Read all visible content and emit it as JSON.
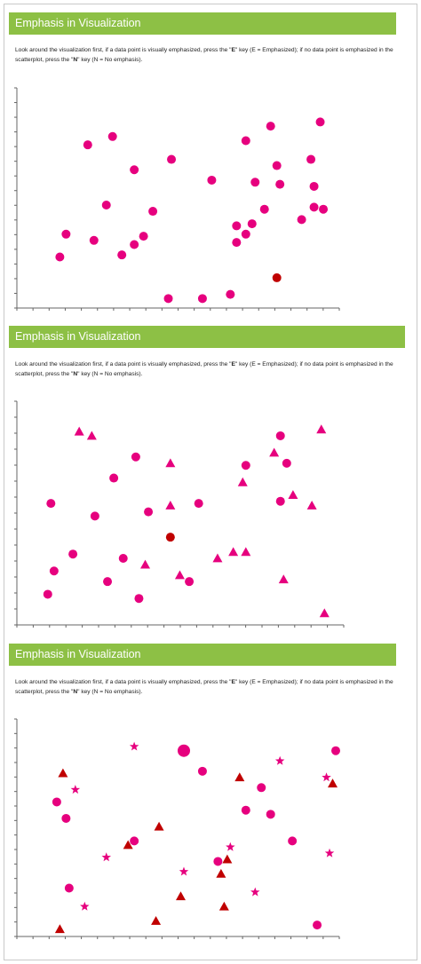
{
  "colors": {
    "banner": "#8dc045",
    "mark": "#e6007e",
    "highlight": "#c00000",
    "axis": "#666666"
  },
  "panels": [
    {
      "title": "Emphasis in Visualization",
      "instructions": {
        "part1": "Look around the visualization first, if a data point is visually emphasized, press the \"",
        "key_e": "E",
        "part2": "\" key (E = Emphasized); if no data point is emphasized in the scatterplot, press the \"",
        "key_n": "N",
        "part3": "\" key (N = No emphasis)."
      }
    },
    {
      "title": "Emphasis in Visualization",
      "instructions": {
        "part1": "Look around the visualization first, if a data point is visually emphasized, press the \"",
        "key_e": "E",
        "part2": "\" key (E = Emphasized); if no data point is emphasized in the scatterplot, press the \"",
        "key_n": "N",
        "part3": "\" key (N = No emphasis)."
      }
    },
    {
      "title": "Emphasis in Visualization",
      "instructions": {
        "part1": "Look around the visualization first, if a data point is visually emphasized, press the \"",
        "key_e": "E",
        "part2": "\" key (E = Emphasized); if no data point is emphasized in the scatterplot, press the \"",
        "key_n": "N",
        "part3": "\" key (N = No emphasis)."
      }
    }
  ],
  "chart_data": [
    {
      "type": "scatter",
      "xlim": [
        0,
        100
      ],
      "ylim": [
        0,
        100
      ],
      "x_ticks": 20,
      "y_ticks": 15,
      "points": [
        {
          "x": 11,
          "y": 22,
          "shape": "circle"
        },
        {
          "x": 13,
          "y": 33,
          "shape": "circle"
        },
        {
          "x": 20,
          "y": 76,
          "shape": "circle"
        },
        {
          "x": 22,
          "y": 30,
          "shape": "circle"
        },
        {
          "x": 26,
          "y": 47,
          "shape": "circle"
        },
        {
          "x": 28,
          "y": 80,
          "shape": "circle"
        },
        {
          "x": 31,
          "y": 23,
          "shape": "circle"
        },
        {
          "x": 35,
          "y": 28,
          "shape": "circle"
        },
        {
          "x": 35,
          "y": 64,
          "shape": "circle"
        },
        {
          "x": 38,
          "y": 32,
          "shape": "circle"
        },
        {
          "x": 41,
          "y": 44,
          "shape": "circle"
        },
        {
          "x": 46,
          "y": 2,
          "shape": "circle"
        },
        {
          "x": 47,
          "y": 69,
          "shape": "circle"
        },
        {
          "x": 57,
          "y": 2,
          "shape": "circle"
        },
        {
          "x": 60,
          "y": 59,
          "shape": "circle"
        },
        {
          "x": 66,
          "y": 4,
          "shape": "circle"
        },
        {
          "x": 68,
          "y": 29,
          "shape": "circle"
        },
        {
          "x": 68,
          "y": 37,
          "shape": "circle"
        },
        {
          "x": 71,
          "y": 33,
          "shape": "circle"
        },
        {
          "x": 71,
          "y": 78,
          "shape": "circle"
        },
        {
          "x": 73,
          "y": 38,
          "shape": "circle"
        },
        {
          "x": 74,
          "y": 58,
          "shape": "circle"
        },
        {
          "x": 77,
          "y": 45,
          "shape": "circle"
        },
        {
          "x": 79,
          "y": 85,
          "shape": "circle"
        },
        {
          "x": 81,
          "y": 66,
          "shape": "circle"
        },
        {
          "x": 81,
          "y": 12,
          "shape": "circle",
          "highlight": true
        },
        {
          "x": 82,
          "y": 57,
          "shape": "circle"
        },
        {
          "x": 89,
          "y": 40,
          "shape": "circle"
        },
        {
          "x": 92,
          "y": 69,
          "shape": "circle"
        },
        {
          "x": 93,
          "y": 56,
          "shape": "circle"
        },
        {
          "x": 93,
          "y": 46,
          "shape": "circle"
        },
        {
          "x": 95,
          "y": 87,
          "shape": "circle"
        },
        {
          "x": 96,
          "y": 45,
          "shape": "circle"
        }
      ]
    },
    {
      "type": "scatter",
      "xlim": [
        0,
        100
      ],
      "ylim": [
        0,
        100
      ],
      "x_ticks": 20,
      "y_ticks": 14,
      "points": [
        {
          "x": 7,
          "y": 12,
          "shape": "circle"
        },
        {
          "x": 8,
          "y": 55,
          "shape": "circle"
        },
        {
          "x": 9,
          "y": 23,
          "shape": "circle"
        },
        {
          "x": 15,
          "y": 31,
          "shape": "circle"
        },
        {
          "x": 17,
          "y": 89,
          "shape": "triangle"
        },
        {
          "x": 21,
          "y": 87,
          "shape": "triangle"
        },
        {
          "x": 22,
          "y": 49,
          "shape": "circle"
        },
        {
          "x": 26,
          "y": 18,
          "shape": "circle"
        },
        {
          "x": 28,
          "y": 67,
          "shape": "circle"
        },
        {
          "x": 31,
          "y": 29,
          "shape": "circle"
        },
        {
          "x": 35,
          "y": 77,
          "shape": "circle"
        },
        {
          "x": 36,
          "y": 10,
          "shape": "circle"
        },
        {
          "x": 38,
          "y": 26,
          "shape": "triangle"
        },
        {
          "x": 39,
          "y": 51,
          "shape": "circle"
        },
        {
          "x": 46,
          "y": 74,
          "shape": "triangle"
        },
        {
          "x": 46,
          "y": 54,
          "shape": "triangle"
        },
        {
          "x": 46,
          "y": 39,
          "shape": "circle",
          "highlight": true
        },
        {
          "x": 49,
          "y": 21,
          "shape": "triangle"
        },
        {
          "x": 52,
          "y": 18,
          "shape": "circle"
        },
        {
          "x": 55,
          "y": 55,
          "shape": "circle"
        },
        {
          "x": 61,
          "y": 29,
          "shape": "triangle"
        },
        {
          "x": 66,
          "y": 32,
          "shape": "triangle"
        },
        {
          "x": 69,
          "y": 65,
          "shape": "triangle"
        },
        {
          "x": 70,
          "y": 73,
          "shape": "circle"
        },
        {
          "x": 70,
          "y": 32,
          "shape": "triangle"
        },
        {
          "x": 79,
          "y": 79,
          "shape": "triangle"
        },
        {
          "x": 81,
          "y": 87,
          "shape": "circle"
        },
        {
          "x": 81,
          "y": 56,
          "shape": "circle"
        },
        {
          "x": 82,
          "y": 19,
          "shape": "triangle"
        },
        {
          "x": 83,
          "y": 74,
          "shape": "circle"
        },
        {
          "x": 85,
          "y": 59,
          "shape": "triangle"
        },
        {
          "x": 91,
          "y": 54,
          "shape": "triangle"
        },
        {
          "x": 94,
          "y": 90,
          "shape": "triangle"
        },
        {
          "x": 95,
          "y": 3,
          "shape": "triangle"
        }
      ]
    },
    {
      "type": "scatter",
      "xlim": [
        0,
        100
      ],
      "ylim": [
        0,
        100
      ],
      "x_ticks": 20,
      "y_ticks": 15,
      "points": [
        {
          "x": 11,
          "y": 1,
          "shape": "triangle",
          "dark": true
        },
        {
          "x": 10,
          "y": 63,
          "shape": "circle"
        },
        {
          "x": 12,
          "y": 77,
          "shape": "triangle",
          "dark": true
        },
        {
          "x": 13,
          "y": 55,
          "shape": "circle"
        },
        {
          "x": 14,
          "y": 21,
          "shape": "circle"
        },
        {
          "x": 16,
          "y": 69,
          "shape": "star"
        },
        {
          "x": 19,
          "y": 12,
          "shape": "star"
        },
        {
          "x": 26,
          "y": 36,
          "shape": "star"
        },
        {
          "x": 33,
          "y": 42,
          "shape": "triangle",
          "dark": true
        },
        {
          "x": 35,
          "y": 44,
          "shape": "circle"
        },
        {
          "x": 35,
          "y": 90,
          "shape": "star"
        },
        {
          "x": 43,
          "y": 51,
          "shape": "triangle",
          "dark": true
        },
        {
          "x": 42,
          "y": 5,
          "shape": "triangle",
          "dark": true
        },
        {
          "x": 51,
          "y": 88,
          "shape": "circle",
          "large": true
        },
        {
          "x": 51,
          "y": 29,
          "shape": "star"
        },
        {
          "x": 50,
          "y": 17,
          "shape": "triangle",
          "dark": true
        },
        {
          "x": 57,
          "y": 78,
          "shape": "circle"
        },
        {
          "x": 62,
          "y": 34,
          "shape": "circle"
        },
        {
          "x": 63,
          "y": 28,
          "shape": "triangle",
          "dark": true
        },
        {
          "x": 64,
          "y": 12,
          "shape": "triangle",
          "dark": true
        },
        {
          "x": 65,
          "y": 35,
          "shape": "triangle",
          "dark": true
        },
        {
          "x": 66,
          "y": 41,
          "shape": "star"
        },
        {
          "x": 69,
          "y": 75,
          "shape": "triangle",
          "dark": true
        },
        {
          "x": 71,
          "y": 59,
          "shape": "circle"
        },
        {
          "x": 74,
          "y": 19,
          "shape": "star"
        },
        {
          "x": 76,
          "y": 70,
          "shape": "circle"
        },
        {
          "x": 79,
          "y": 57,
          "shape": "circle"
        },
        {
          "x": 82,
          "y": 83,
          "shape": "star"
        },
        {
          "x": 86,
          "y": 44,
          "shape": "circle"
        },
        {
          "x": 94,
          "y": 3,
          "shape": "circle"
        },
        {
          "x": 97,
          "y": 75,
          "shape": "star"
        },
        {
          "x": 98,
          "y": 38,
          "shape": "star"
        },
        {
          "x": 99,
          "y": 72,
          "shape": "triangle",
          "dark": true
        },
        {
          "x": 100,
          "y": 88,
          "shape": "circle"
        }
      ]
    }
  ]
}
